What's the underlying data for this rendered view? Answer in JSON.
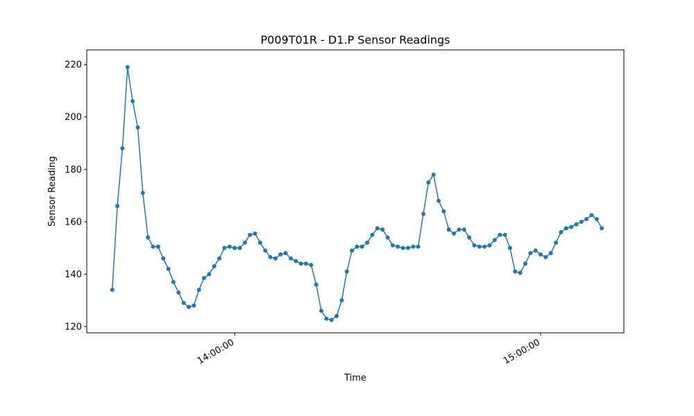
{
  "chart_data": {
    "type": "line",
    "title": "P009T01R - D1.P Sensor Readings",
    "x_label": "Time",
    "y_label": "Sensor Reading",
    "x": [
      "13:36:00",
      "13:37:00",
      "13:38:00",
      "13:39:00",
      "13:40:00",
      "13:41:00",
      "13:42:00",
      "13:43:00",
      "13:44:00",
      "13:45:00",
      "13:46:00",
      "13:47:00",
      "13:48:00",
      "13:49:00",
      "13:50:00",
      "13:51:00",
      "13:52:00",
      "13:53:00",
      "13:54:00",
      "13:55:00",
      "13:56:00",
      "13:57:00",
      "13:58:00",
      "13:59:00",
      "14:00:00",
      "14:01:00",
      "14:02:00",
      "14:03:00",
      "14:04:00",
      "14:05:00",
      "14:06:00",
      "14:07:00",
      "14:08:00",
      "14:09:00",
      "14:10:00",
      "14:11:00",
      "14:12:00",
      "14:13:00",
      "14:14:00",
      "14:15:00",
      "14:16:00",
      "14:17:00",
      "14:18:00",
      "14:19:00",
      "14:20:00",
      "14:21:00",
      "14:22:00",
      "14:23:00",
      "14:24:00",
      "14:25:00",
      "14:26:00",
      "14:27:00",
      "14:28:00",
      "14:29:00",
      "14:30:00",
      "14:31:00",
      "14:32:00",
      "14:33:00",
      "14:34:00",
      "14:35:00",
      "14:36:00",
      "14:37:00",
      "14:38:00",
      "14:39:00",
      "14:40:00",
      "14:41:00",
      "14:42:00",
      "14:43:00",
      "14:44:00",
      "14:45:00",
      "14:46:00",
      "14:47:00",
      "14:48:00",
      "14:49:00",
      "14:50:00",
      "14:51:00",
      "14:52:00",
      "14:53:00",
      "14:54:00",
      "14:55:00",
      "14:56:00",
      "14:57:00",
      "14:58:00",
      "14:59:00",
      "15:00:00",
      "15:01:00",
      "15:02:00",
      "15:03:00",
      "15:04:00",
      "15:05:00",
      "15:06:00",
      "15:07:00",
      "15:08:00",
      "15:09:00",
      "15:10:00",
      "15:11:00",
      "15:12:00"
    ],
    "series": [
      {
        "name": "D1.P",
        "color": "#1f77b4",
        "values": [
          134,
          166,
          188,
          219,
          206,
          196,
          171,
          154,
          150.5,
          150.5,
          146,
          142,
          137,
          133,
          129,
          127.5,
          128,
          134,
          138.5,
          140,
          143,
          146,
          150,
          150.5,
          150,
          150,
          152,
          155,
          155.5,
          152,
          149,
          146.5,
          146,
          147.5,
          148,
          146,
          145,
          144,
          144,
          143.5,
          136,
          126,
          123,
          122.5,
          124,
          130,
          141,
          149,
          150.5,
          150.5,
          152,
          155,
          157.5,
          157,
          154,
          151,
          150.5,
          150,
          150,
          150.5,
          150.5,
          163,
          175,
          178,
          168,
          164,
          157,
          155.5,
          157,
          157,
          154,
          151,
          150.5,
          150.5,
          151,
          153,
          155,
          155,
          150,
          141,
          140.5,
          144,
          148,
          149,
          147.5,
          146.5,
          148,
          152,
          156,
          157.5,
          158,
          159,
          160,
          161,
          162.5,
          161,
          157.5
        ]
      }
    ],
    "xlim": [
      "13:31:00",
      "15:16:20"
    ],
    "xticks": [
      "14:00:00",
      "15:00:00"
    ],
    "ylim": [
      117.6,
      225.6
    ],
    "yticks": [
      120,
      140,
      160,
      180,
      200,
      220
    ]
  }
}
